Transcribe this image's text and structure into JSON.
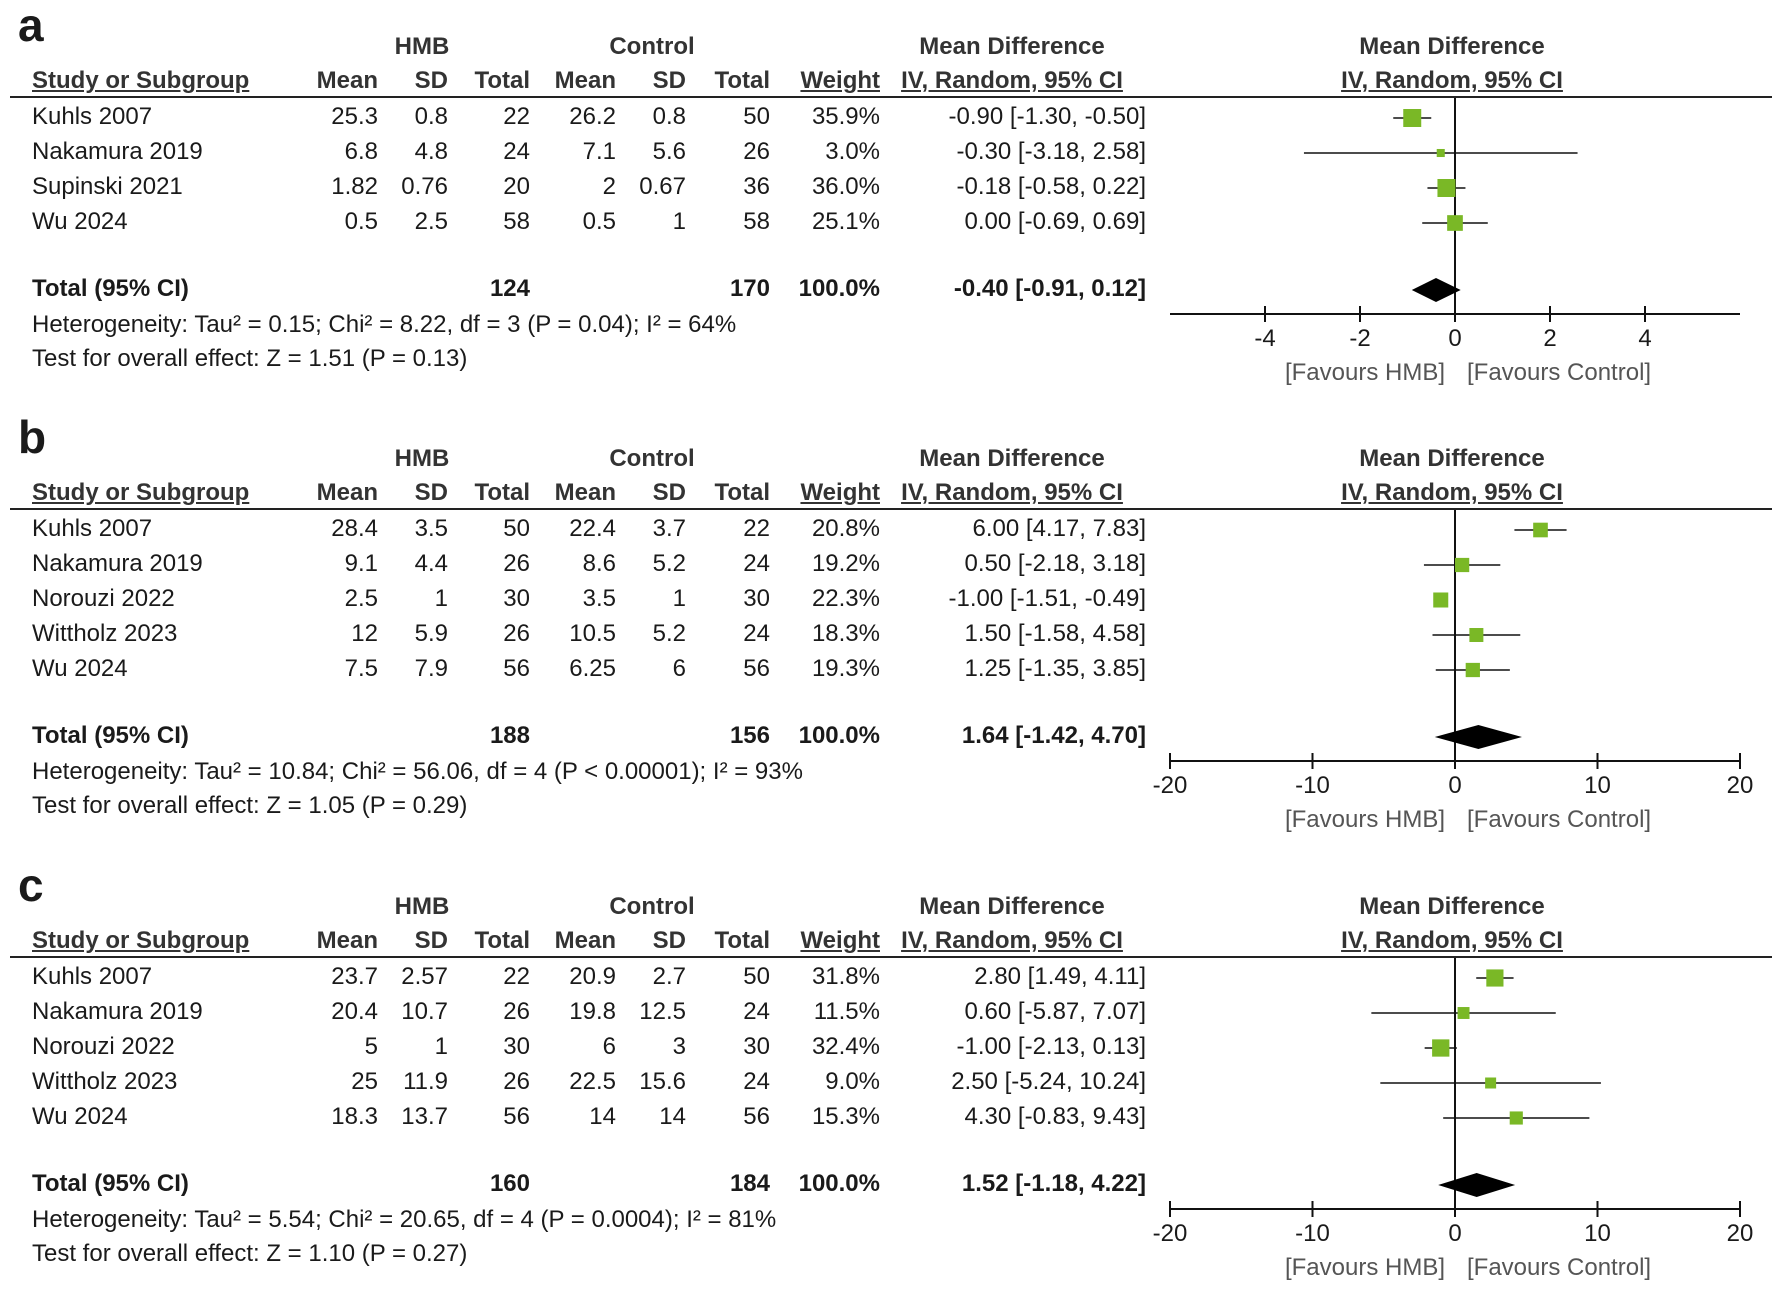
{
  "headers": {
    "study": "Study or Subgroup",
    "hmb": "HMB",
    "control": "Control",
    "mean": "Mean",
    "sd": "SD",
    "total": "Total",
    "weight": "Weight",
    "md": "Mean Difference",
    "md_method": "IV, Random, 95% CI",
    "favours_left": "[Favours HMB]",
    "favours_right": "[Favours Control]"
  },
  "colors": {
    "square": "#7ab826",
    "diamond": "#000000"
  },
  "chart_data": [
    {
      "letter": "a",
      "type": "forest",
      "xlim": [
        -6,
        6
      ],
      "ticks": [
        -4,
        -2,
        0,
        2,
        4
      ],
      "tick_labels": [
        "-4",
        "-2",
        "0",
        "2",
        "4"
      ],
      "studies": [
        {
          "name": "Kuhls 2007",
          "m1": "25.3",
          "sd1": "0.8",
          "n1": "22",
          "m2": "26.2",
          "sd2": "0.8",
          "n2": "50",
          "weight": "35.9%",
          "md_text": "-0.90 [-1.30, -0.50]",
          "md": -0.9,
          "lo": -1.3,
          "hi": -0.5,
          "w": 35.9
        },
        {
          "name": "Nakamura 2019",
          "m1": "6.8",
          "sd1": "4.8",
          "n1": "24",
          "m2": "7.1",
          "sd2": "5.6",
          "n2": "26",
          "weight": "3.0%",
          "md_text": "-0.30 [-3.18, 2.58]",
          "md": -0.3,
          "lo": -3.18,
          "hi": 2.58,
          "w": 3.0
        },
        {
          "name": "Supinski 2021",
          "m1": "1.82",
          "sd1": "0.76",
          "n1": "20",
          "m2": "2",
          "sd2": "0.67",
          "n2": "36",
          "weight": "36.0%",
          "md_text": "-0.18 [-0.58, 0.22]",
          "md": -0.18,
          "lo": -0.58,
          "hi": 0.22,
          "w": 36.0
        },
        {
          "name": "Wu 2024",
          "m1": "0.5",
          "sd1": "2.5",
          "n1": "58",
          "m2": "0.5",
          "sd2": "1",
          "n2": "58",
          "weight": "25.1%",
          "md_text": "0.00 [-0.69, 0.69]",
          "md": 0.0,
          "lo": -0.69,
          "hi": 0.69,
          "w": 25.1
        }
      ],
      "total": {
        "label": "Total (95% CI)",
        "n1": "124",
        "n2": "170",
        "weight": "100.0%",
        "md_text": "-0.40 [-0.91, 0.12]",
        "md": -0.4,
        "lo": -0.91,
        "hi": 0.12
      },
      "heterogeneity": "Heterogeneity: Tau² = 0.15; Chi² = 8.22, df = 3 (P = 0.04); I² = 64%",
      "overall": "Test for overall effect: Z = 1.51 (P = 0.13)"
    },
    {
      "letter": "b",
      "type": "forest",
      "xlim": [
        -20,
        20
      ],
      "ticks": [
        -20,
        -10,
        0,
        10,
        20
      ],
      "tick_labels": [
        "-20",
        "-10",
        "0",
        "10",
        "20"
      ],
      "studies": [
        {
          "name": "Kuhls 2007",
          "m1": "28.4",
          "sd1": "3.5",
          "n1": "50",
          "m2": "22.4",
          "sd2": "3.7",
          "n2": "22",
          "weight": "20.8%",
          "md_text": "6.00 [4.17, 7.83]",
          "md": 6.0,
          "lo": 4.17,
          "hi": 7.83,
          "w": 20.8
        },
        {
          "name": "Nakamura 2019",
          "m1": "9.1",
          "sd1": "4.4",
          "n1": "26",
          "m2": "8.6",
          "sd2": "5.2",
          "n2": "24",
          "weight": "19.2%",
          "md_text": "0.50 [-2.18, 3.18]",
          "md": 0.5,
          "lo": -2.18,
          "hi": 3.18,
          "w": 19.2
        },
        {
          "name": "Norouzi 2022",
          "m1": "2.5",
          "sd1": "1",
          "n1": "30",
          "m2": "3.5",
          "sd2": "1",
          "n2": "30",
          "weight": "22.3%",
          "md_text": "-1.00 [-1.51, -0.49]",
          "md": -1.0,
          "lo": -1.51,
          "hi": -0.49,
          "w": 22.3
        },
        {
          "name": "Wittholz 2023",
          "m1": "12",
          "sd1": "5.9",
          "n1": "26",
          "m2": "10.5",
          "sd2": "5.2",
          "n2": "24",
          "weight": "18.3%",
          "md_text": "1.50 [-1.58, 4.58]",
          "md": 1.5,
          "lo": -1.58,
          "hi": 4.58,
          "w": 18.3
        },
        {
          "name": "Wu 2024",
          "m1": "7.5",
          "sd1": "7.9",
          "n1": "56",
          "m2": "6.25",
          "sd2": "6",
          "n2": "56",
          "weight": "19.3%",
          "md_text": "1.25 [-1.35, 3.85]",
          "md": 1.25,
          "lo": -1.35,
          "hi": 3.85,
          "w": 19.3
        }
      ],
      "total": {
        "label": "Total (95% CI)",
        "n1": "188",
        "n2": "156",
        "weight": "100.0%",
        "md_text": "1.64 [-1.42, 4.70]",
        "md": 1.64,
        "lo": -1.42,
        "hi": 4.7
      },
      "heterogeneity": "Heterogeneity: Tau² = 10.84; Chi² = 56.06, df = 4 (P < 0.00001); I² = 93%",
      "overall": "Test for overall effect: Z = 1.05 (P = 0.29)"
    },
    {
      "letter": "c",
      "type": "forest",
      "xlim": [
        -20,
        20
      ],
      "ticks": [
        -20,
        -10,
        0,
        10,
        20
      ],
      "tick_labels": [
        "-20",
        "-10",
        "0",
        "10",
        "20"
      ],
      "studies": [
        {
          "name": "Kuhls 2007",
          "m1": "23.7",
          "sd1": "2.57",
          "n1": "22",
          "m2": "20.9",
          "sd2": "2.7",
          "n2": "50",
          "weight": "31.8%",
          "md_text": "2.80 [1.49, 4.11]",
          "md": 2.8,
          "lo": 1.49,
          "hi": 4.11,
          "w": 31.8
        },
        {
          "name": "Nakamura 2019",
          "m1": "20.4",
          "sd1": "10.7",
          "n1": "26",
          "m2": "19.8",
          "sd2": "12.5",
          "n2": "24",
          "weight": "11.5%",
          "md_text": "0.60 [-5.87, 7.07]",
          "md": 0.6,
          "lo": -5.87,
          "hi": 7.07,
          "w": 11.5
        },
        {
          "name": "Norouzi 2022",
          "m1": "5",
          "sd1": "1",
          "n1": "30",
          "m2": "6",
          "sd2": "3",
          "n2": "30",
          "weight": "32.4%",
          "md_text": "-1.00 [-2.13, 0.13]",
          "md": -1.0,
          "lo": -2.13,
          "hi": 0.13,
          "w": 32.4
        },
        {
          "name": "Wittholz 2023",
          "m1": "25",
          "sd1": "11.9",
          "n1": "26",
          "m2": "22.5",
          "sd2": "15.6",
          "n2": "24",
          "weight": "9.0%",
          "md_text": "2.50 [-5.24, 10.24]",
          "md": 2.5,
          "lo": -5.24,
          "hi": 10.24,
          "w": 9.0
        },
        {
          "name": "Wu 2024",
          "m1": "18.3",
          "sd1": "13.7",
          "n1": "56",
          "m2": "14",
          "sd2": "14",
          "n2": "56",
          "weight": "15.3%",
          "md_text": "4.30 [-0.83, 9.43]",
          "md": 4.3,
          "lo": -0.83,
          "hi": 9.43,
          "w": 15.3
        }
      ],
      "total": {
        "label": "Total (95% CI)",
        "n1": "160",
        "n2": "184",
        "weight": "100.0%",
        "md_text": "1.52 [-1.18, 4.22]",
        "md": 1.52,
        "lo": -1.18,
        "hi": 4.22
      },
      "heterogeneity": "Heterogeneity: Tau² = 5.54; Chi² = 20.65, df = 4 (P = 0.0004); I² = 81%",
      "overall": "Test for overall effect: Z = 1.10 (P = 0.27)"
    }
  ]
}
